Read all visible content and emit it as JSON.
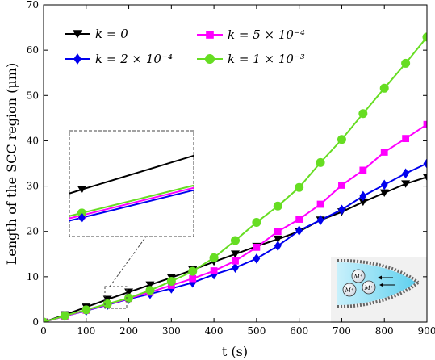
{
  "chart_data": {
    "type": "line",
    "xlabel": "t (s)",
    "ylabel": "Length of the SCC region (μm)",
    "xlim": [
      0,
      900
    ],
    "ylim": [
      0,
      70
    ],
    "xticks": [
      0,
      100,
      200,
      300,
      400,
      500,
      600,
      700,
      800,
      900
    ],
    "yticks": [
      0,
      10,
      20,
      30,
      40,
      50,
      60,
      70
    ],
    "grid": false,
    "legend_position": "top",
    "series": [
      {
        "name": "k = 0",
        "color": "#000000",
        "marker": "triangle-down",
        "x": [
          0,
          50,
          100,
          150,
          200,
          250,
          300,
          350,
          400,
          450,
          500,
          550,
          600,
          650,
          700,
          750,
          800,
          850,
          900
        ],
        "y": [
          0,
          1.6,
          3.3,
          5.0,
          6.6,
          8.2,
          9.8,
          11.5,
          13.3,
          15.0,
          16.7,
          18.3,
          20.0,
          22.5,
          24.3,
          26.5,
          28.5,
          30.5,
          32.0
        ]
      },
      {
        "name": "k = 2 × 10⁻⁴",
        "color": "#0000ee",
        "marker": "diamond",
        "x": [
          0,
          50,
          100,
          150,
          200,
          250,
          300,
          350,
          400,
          450,
          500,
          550,
          600,
          650,
          700,
          750,
          800,
          850,
          900
        ],
        "y": [
          0,
          1.3,
          2.5,
          3.8,
          5.1,
          6.2,
          7.4,
          8.7,
          10.5,
          12.0,
          14.0,
          16.8,
          20.2,
          22.5,
          24.8,
          27.8,
          30.3,
          32.8,
          35.0
        ]
      },
      {
        "name": "k = 5 × 10⁻⁴",
        "color": "#ff00ff",
        "marker": "square",
        "x": [
          0,
          50,
          100,
          150,
          200,
          250,
          300,
          350,
          400,
          450,
          500,
          550,
          600,
          650,
          700,
          750,
          800,
          850,
          900
        ],
        "y": [
          0,
          1.3,
          2.6,
          3.9,
          5.2,
          6.6,
          8.1,
          9.6,
          11.3,
          13.5,
          16.5,
          20.0,
          22.7,
          26.0,
          30.2,
          33.5,
          37.5,
          40.5,
          43.6
        ]
      },
      {
        "name": "k = 1 × 10⁻³",
        "color": "#66dd22",
        "marker": "circle",
        "x": [
          0,
          50,
          100,
          150,
          200,
          250,
          300,
          350,
          400,
          450,
          500,
          550,
          600,
          650,
          700,
          750,
          800,
          850,
          900
        ],
        "y": [
          0,
          1.4,
          2.7,
          4.0,
          5.3,
          7.0,
          9.0,
          11.2,
          14.2,
          18.0,
          22.0,
          25.6,
          29.7,
          35.2,
          40.3,
          46.0,
          51.6,
          57.1,
          62.9
        ]
      }
    ],
    "inset": {
      "source_box_x": [
        145,
        195
      ],
      "source_box_y": [
        3,
        7.5
      ]
    },
    "schematic_labels": [
      "M⁺",
      "M⁺",
      "M⁺"
    ]
  }
}
